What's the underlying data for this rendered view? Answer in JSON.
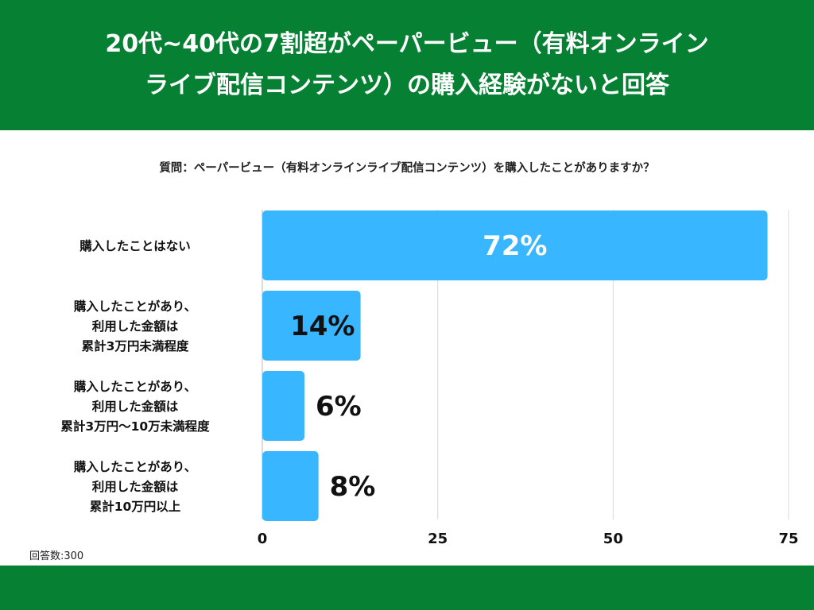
{
  "header": {
    "title_line1": "20代~40代の7割超がペーパービュー（有料オンライン",
    "title_line2": "ライブ配信コンテンツ）の購入経験がないと回答"
  },
  "question": "質問：ペーパービュー（有料オンラインライブ配信コンテンツ）を購入したことがありますか？",
  "respondents": "回答数:300",
  "colors": {
    "header_bg": "#068133",
    "bar": "#38B6FF",
    "grid": "#d9d9d9"
  },
  "chart_data": {
    "type": "bar",
    "orientation": "horizontal",
    "categories": [
      [
        "購入したことはない"
      ],
      [
        "購入したことがあり、",
        "利用した金額は",
        "累計3万円未満程度"
      ],
      [
        "購入したことがあり、",
        "利用した金額は",
        "累計3万円〜10万未満程度"
      ],
      [
        "購入したことがあり、",
        "利用した金額は",
        "累計10万円以上"
      ]
    ],
    "values": [
      72,
      14,
      6,
      8
    ],
    "value_labels": [
      "72%",
      "14%",
      "6%",
      "8%"
    ],
    "xlim": [
      0,
      75
    ],
    "xticks": [
      0,
      25,
      50,
      75
    ],
    "grid": true,
    "legend": "none"
  }
}
